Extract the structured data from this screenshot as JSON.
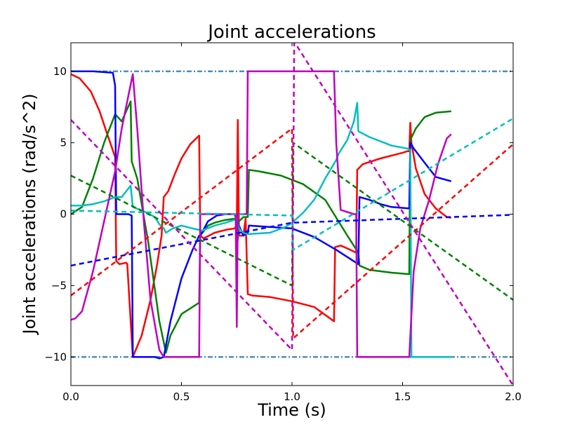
{
  "chart_data": {
    "type": "line",
    "title": "Joint accelerations",
    "xlabel": "Time (s)",
    "ylabel": "Joint accelerations (rad/s^2)",
    "xlim": [
      0.0,
      2.0
    ],
    "ylim": [
      -12,
      12
    ],
    "xticks": [
      0.0,
      0.5,
      1.0,
      1.5,
      2.0
    ],
    "xtick_labels": [
      "0.0",
      "0.5",
      "1.0",
      "1.5",
      "2.0"
    ],
    "yticks": [
      -10,
      -5,
      0,
      5,
      10
    ],
    "ytick_labels": [
      "−10",
      "−5",
      "0",
      "5",
      "10"
    ],
    "grid": false,
    "limits": {
      "values": [
        10,
        -10
      ],
      "color": "#4f8fc0",
      "style": "dashdot"
    },
    "series": [
      {
        "color": "#ff0000",
        "style": "solid",
        "x": [
          0.0,
          0.04,
          0.09,
          0.13,
          0.16,
          0.2,
          0.205,
          0.22,
          0.25,
          0.255,
          0.28,
          0.32,
          0.36,
          0.39,
          0.41,
          0.42,
          0.44,
          0.47,
          0.5,
          0.54,
          0.58,
          0.585,
          0.6,
          0.65,
          0.7,
          0.74,
          0.75,
          0.755,
          0.76,
          0.78,
          0.79,
          0.8,
          0.82,
          0.9,
          1.0,
          1.1,
          1.19,
          1.195,
          1.22,
          1.25,
          1.29,
          1.295,
          1.32,
          1.4,
          1.5,
          1.52,
          1.53,
          1.535,
          1.54,
          1.56,
          1.6,
          1.65,
          1.7,
          1.72
        ],
        "y": [
          9.8,
          9.5,
          8.6,
          7.2,
          5.8,
          4.0,
          -3.3,
          -3.5,
          -3.4,
          -3.5,
          -10.0,
          -8.5,
          -6.0,
          -3.5,
          -1.5,
          1.2,
          1.6,
          2.8,
          3.9,
          4.9,
          5.5,
          -1.5,
          -1.7,
          -1.3,
          -1.1,
          -1.0,
          -0.8,
          6.6,
          -1.5,
          -1.5,
          -0.3,
          -5.6,
          -5.7,
          -5.8,
          -6.1,
          -6.5,
          -7.5,
          -2.3,
          -2.2,
          -2.4,
          -2.7,
          3.1,
          3.5,
          3.9,
          4.3,
          4.4,
          4.4,
          6.4,
          5.0,
          3.2,
          1.4,
          0.4,
          -0.2,
          -0.25
        ]
      },
      {
        "color": "#008000",
        "style": "solid",
        "x": [
          0.0,
          0.05,
          0.1,
          0.15,
          0.2,
          0.23,
          0.27,
          0.275,
          0.3,
          0.35,
          0.4,
          0.43,
          0.45,
          0.5,
          0.55,
          0.58,
          0.585,
          0.62,
          0.65,
          0.7,
          0.75,
          0.755,
          0.76,
          0.78,
          0.8,
          0.805,
          0.85,
          0.95,
          1.05,
          1.15,
          1.25,
          1.3,
          1.305,
          1.35,
          1.45,
          1.53,
          1.535,
          1.56,
          1.6,
          1.65,
          1.72
        ],
        "y": [
          0.0,
          0.5,
          2.5,
          5.0,
          7.0,
          6.5,
          7.9,
          3.7,
          2.5,
          -2.0,
          -7.5,
          -9.7,
          -8.5,
          -7.0,
          -6.5,
          -6.2,
          -1.5,
          -0.8,
          -0.6,
          -0.4,
          -0.3,
          -1.8,
          -0.5,
          -0.2,
          -0.2,
          3.1,
          3.0,
          2.7,
          2.1,
          1.0,
          -1.5,
          -2.7,
          -3.6,
          -3.9,
          -4.1,
          -4.2,
          5.2,
          6.0,
          6.8,
          7.1,
          7.2
        ]
      },
      {
        "color": "#0000ff",
        "style": "solid",
        "x": [
          0.0,
          0.1,
          0.19,
          0.2,
          0.205,
          0.26,
          0.275,
          0.28,
          0.38,
          0.4,
          0.42,
          0.45,
          0.5,
          0.55,
          0.58,
          0.585,
          0.62,
          0.66,
          0.7,
          0.74,
          0.76,
          0.78,
          0.8,
          0.805,
          0.9,
          1.0,
          1.1,
          1.2,
          1.3,
          1.305,
          1.35,
          1.4,
          1.45,
          1.53,
          1.535,
          1.55,
          1.6,
          1.65,
          1.72
        ],
        "y": [
          10.0,
          10.0,
          9.9,
          9.0,
          0.0,
          0.0,
          -0.1,
          -10.0,
          -10.0,
          -10.1,
          -10.0,
          -7.5,
          -4.5,
          -2.5,
          -1.5,
          -1.5,
          -0.5,
          -0.1,
          0.0,
          0.0,
          -0.8,
          -1.5,
          -1.3,
          -0.8,
          -0.9,
          -1.0,
          -1.6,
          -2.5,
          -3.5,
          1.2,
          1.0,
          0.7,
          0.5,
          0.4,
          5.0,
          4.6,
          3.6,
          2.6,
          2.3
        ]
      },
      {
        "color": "#00bfbf",
        "style": "solid",
        "x": [
          0.0,
          0.05,
          0.1,
          0.15,
          0.2,
          0.23,
          0.27,
          0.28,
          0.33,
          0.38,
          0.4,
          0.42,
          0.43,
          0.46,
          0.5,
          0.55,
          0.58,
          0.585,
          0.65,
          0.7,
          0.74,
          0.75,
          0.76,
          0.78,
          0.8,
          0.9,
          0.97,
          1.0,
          1.05,
          1.1,
          1.15,
          1.2,
          1.21,
          1.25,
          1.28,
          1.295,
          1.3,
          1.35,
          1.4,
          1.45,
          1.52,
          1.535,
          1.54,
          1.6,
          1.72
        ],
        "y": [
          0.6,
          0.6,
          0.7,
          0.9,
          1.2,
          1.2,
          2.0,
          0.5,
          0.2,
          -0.2,
          -0.7,
          -1.0,
          -1.3,
          -1.0,
          -0.8,
          -1.0,
          -1.1,
          -1.2,
          -0.8,
          -0.6,
          -0.4,
          -0.3,
          -1.0,
          -1.3,
          -1.4,
          -1.3,
          -0.9,
          -0.6,
          0.1,
          1.0,
          2.5,
          3.8,
          4.2,
          5.2,
          6.5,
          7.8,
          5.8,
          5.4,
          5.1,
          4.8,
          4.6,
          4.5,
          -10.0,
          -10.0,
          -10.0
        ]
      },
      {
        "color": "#bf00bf",
        "style": "solid",
        "x": [
          0.0,
          0.02,
          0.05,
          0.1,
          0.15,
          0.2,
          0.23,
          0.26,
          0.28,
          0.3,
          0.33,
          0.36,
          0.4,
          0.42,
          0.45,
          0.5,
          0.55,
          0.58,
          0.585,
          0.65,
          0.7,
          0.745,
          0.75,
          0.755,
          0.765,
          0.78,
          0.795,
          0.8,
          0.9,
          1.0,
          1.1,
          1.19,
          1.2,
          1.22,
          1.28,
          1.29,
          1.295,
          1.32,
          1.4,
          1.5,
          1.52,
          1.53,
          1.55,
          1.58,
          1.62,
          1.66,
          1.7,
          1.72
        ],
        "y": [
          -7.4,
          -7.3,
          -6.8,
          -4.0,
          -0.5,
          3.0,
          6.0,
          8.3,
          9.8,
          6.0,
          -0.5,
          -6.0,
          -9.5,
          -10.0,
          -10.0,
          -10.0,
          -10.0,
          -10.0,
          0.0,
          0.0,
          0.0,
          0.0,
          -7.9,
          0.0,
          0.0,
          0.0,
          0.0,
          10.0,
          10.0,
          10.0,
          10.0,
          10.0,
          5.0,
          0.3,
          0.0,
          0.0,
          -10.0,
          -10.0,
          -10.0,
          -10.0,
          -10.0,
          -10.0,
          -4.0,
          -1.0,
          1.0,
          3.5,
          5.3,
          5.6
        ]
      },
      {
        "color": "#ff0000",
        "style": "dashed",
        "x": [
          0.0,
          1.0,
          1.005,
          2.0
        ],
        "y": [
          -5.7,
          6.0,
          -8.7,
          4.9
        ]
      },
      {
        "color": "#008000",
        "style": "dashed",
        "x": [
          0.0,
          1.0,
          1.005,
          2.0
        ],
        "y": [
          2.7,
          -5.0,
          5.0,
          -6.0
        ]
      },
      {
        "color": "#0000ff",
        "style": "dashed",
        "x": [
          0.0,
          1.0,
          1.005,
          2.0
        ],
        "y": [
          -3.6,
          -0.6,
          -0.6,
          -0.05
        ]
      },
      {
        "color": "#00bfbf",
        "style": "dashed",
        "x": [
          0.0,
          1.0,
          1.005,
          2.0
        ],
        "y": [
          0.25,
          -0.1,
          -2.5,
          6.7
        ]
      },
      {
        "color": "#bf00bf",
        "style": "dashed",
        "x": [
          0.0,
          1.0,
          1.01,
          1.013,
          2.0
        ],
        "y": [
          6.6,
          -9.5,
          12.0,
          12.0,
          -12.0
        ]
      }
    ]
  }
}
